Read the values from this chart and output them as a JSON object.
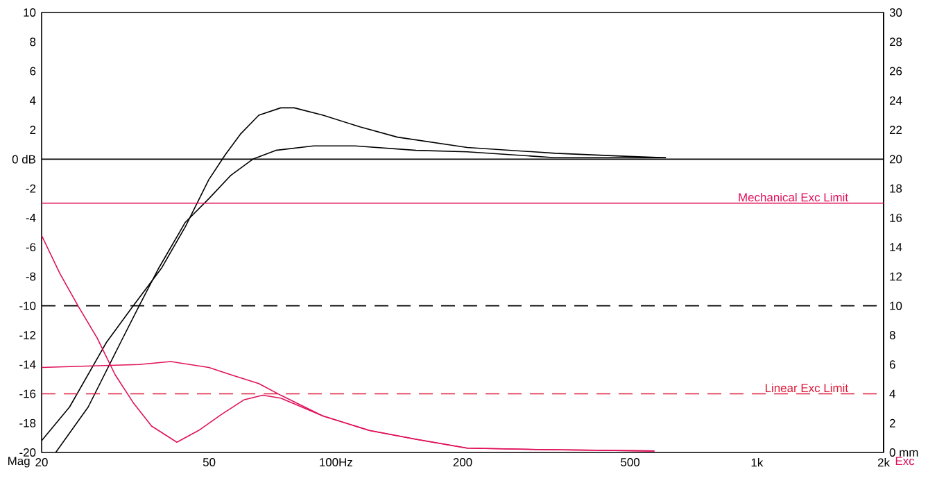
{
  "chart_data": {
    "type": "line",
    "ylabel": "Mag",
    "y2label": "Exc",
    "log": "x",
    "xlim": [
      20,
      2000
    ],
    "xticks": [
      20,
      50,
      {
        "value": 100,
        "label": "100Hz"
      },
      200,
      500,
      {
        "value": 1000,
        "label": "1k"
      },
      {
        "value": 2000,
        "label": "2k"
      }
    ],
    "ylim": [
      -20,
      10
    ],
    "yticks": [
      -20,
      -18,
      -16,
      -14,
      -12,
      -10,
      -8,
      -6,
      -4,
      -2,
      {
        "value": 0,
        "label": "0 dB"
      },
      2,
      4,
      6,
      8,
      10
    ],
    "y2lim": [
      0,
      30
    ],
    "y2ticks": [
      {
        "value": 0,
        "label": "0 mm"
      },
      2,
      4,
      6,
      8,
      10,
      12,
      14,
      16,
      18,
      20,
      22,
      24,
      26,
      28,
      30
    ],
    "series": [
      {
        "color": "#000000",
        "x": [
          20,
          23.3,
          28.5,
          33.0,
          38.6,
          43.9,
          49.9,
          54.6,
          59.3,
          65.6,
          74,
          79.6,
          93.2,
          114,
          140,
          205,
          332,
          484,
          608
        ],
        "values": [
          -19.2,
          -16.9,
          -12.5,
          -10.0,
          -7.4,
          -4.6,
          -1.4,
          0.3,
          1.7,
          3.0,
          3.5,
          3.5,
          3.0,
          2.2,
          1.5,
          0.8,
          0.4,
          0.2,
          0.1
        ]
      },
      {
        "color": "#000000",
        "x": [
          21.6,
          25.8,
          30.8,
          34.1,
          38.0,
          43.9,
          49.9,
          56.3,
          63.5,
          72,
          88.5,
          111,
          155,
          205,
          332,
          608
        ],
        "values": [
          -20,
          -16.9,
          -12.5,
          -10.0,
          -7.4,
          -4.3,
          -2.7,
          -1.1,
          0.0,
          0.6,
          0.9,
          0.9,
          0.6,
          0.5,
          0.1,
          0.1
        ]
      },
      {
        "color": "#e0105a",
        "axis": "y2",
        "x": [
          20,
          22.1,
          24.4,
          27.1,
          29.9,
          33.0,
          36.5,
          41.9,
          47.2,
          53.5,
          60.6,
          67.0,
          74,
          93,
          120,
          155,
          205,
          300,
          571
        ],
        "values": [
          14.8,
          12.2,
          10,
          7.8,
          5.3,
          3.4,
          1.8,
          0.7,
          1.5,
          2.6,
          3.6,
          3.9,
          3.7,
          2.5,
          1.5,
          0.9,
          0.3,
          0.2,
          0.1
        ]
      },
      {
        "color": "#e0105a",
        "axis": "y2",
        "x": [
          20,
          26.5,
          34.1,
          40.5,
          49.9,
          56.3,
          65.6,
          74,
          93,
          120,
          155,
          205,
          300,
          571
        ],
        "values": [
          5.8,
          5.9,
          6.0,
          6.2,
          5.8,
          5.3,
          4.7,
          3.9,
          2.5,
          1.5,
          0.9,
          0.3,
          0.2,
          0.1
        ]
      }
    ],
    "ref_lines": [
      {
        "axis": "y",
        "value": 0,
        "color": "#000000",
        "line_style": "solid"
      },
      {
        "axis": "y",
        "value": -10,
        "color": "#000000",
        "line_style": "dashed"
      },
      {
        "axis": "y2",
        "value": 17,
        "label": "Mechanical Exc Limit",
        "color": "#e0105a",
        "line_style": "solid"
      },
      {
        "axis": "y2",
        "value": 4,
        "label": "Linear Exc Limit",
        "color": "#e01838",
        "line_style": "dashed"
      }
    ]
  }
}
